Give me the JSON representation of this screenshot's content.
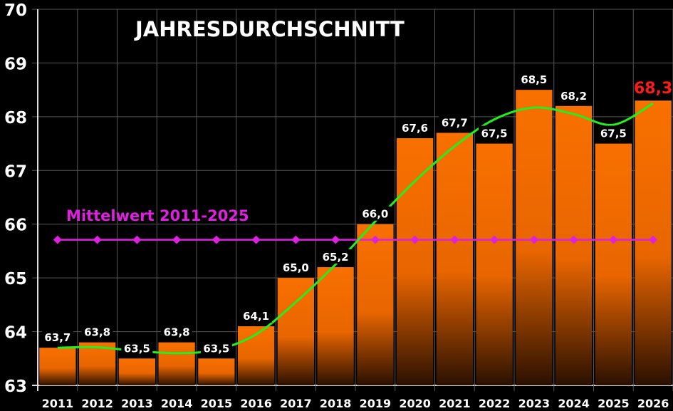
{
  "chart_data": {
    "type": "bar",
    "title": "JAHRESDURCHSCHNITT",
    "xlabel": "",
    "ylabel": "",
    "ylim": [
      63,
      70
    ],
    "yticks": [
      "63",
      "64",
      "65",
      "66",
      "67",
      "68",
      "69",
      "70"
    ],
    "grid": true,
    "categories": [
      "2011",
      "2012",
      "2013",
      "2014",
      "2015",
      "2016",
      "2017",
      "2018",
      "2019",
      "2020",
      "2021",
      "2022",
      "2023",
      "2024",
      "2025",
      "2026"
    ],
    "values": [
      63.7,
      63.8,
      63.5,
      63.8,
      63.5,
      64.1,
      65.0,
      65.2,
      66.0,
      67.6,
      67.7,
      67.5,
      68.5,
      68.2,
      67.5,
      68.3
    ],
    "value_labels": [
      "63,7",
      "63,8",
      "63,5",
      "63,8",
      "63,5",
      "64,1",
      "65,0",
      "65,2",
      "66,0",
      "67,6",
      "67,7",
      "67,5",
      "68,5",
      "68,2",
      "67,5",
      "68,3"
    ],
    "highlight_index": 15,
    "mean_line": {
      "label": "Mittelwert 2011-2025",
      "value": 65.71,
      "range": [
        "2011",
        "2025"
      ]
    },
    "trend": [
      63.7,
      63.71,
      63.64,
      63.6,
      63.66,
      63.95,
      64.55,
      65.25,
      66.05,
      66.8,
      67.45,
      67.95,
      68.17,
      68.05,
      67.85,
      68.25
    ],
    "colors": {
      "bar_top": "#f87000",
      "bar_bottom": "#2a1000",
      "trend": "#22ee22",
      "mean": "#e020e0",
      "highlight": "#ff1a1a",
      "grid": "#555555"
    }
  }
}
